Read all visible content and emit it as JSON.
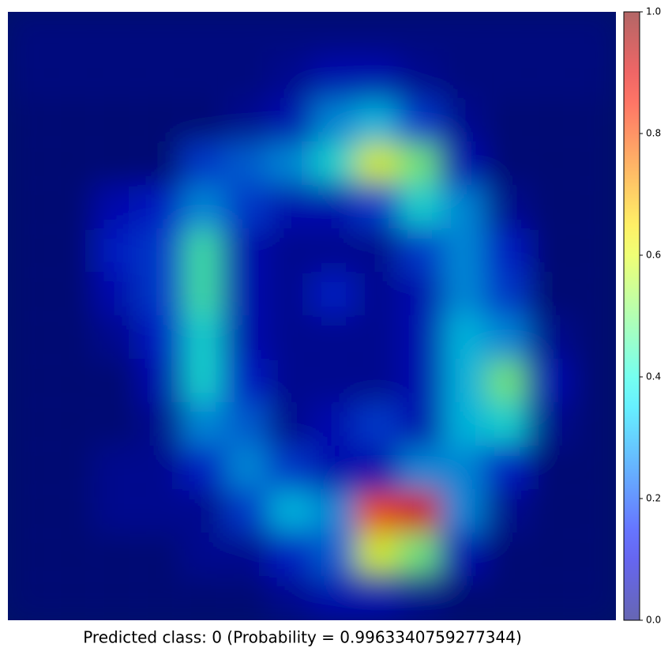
{
  "chart_data": {
    "type": "heatmap",
    "colormap": "jet",
    "alpha": 0.6,
    "xlabel": "Predicted class: 0 (Probability = 0.9963340759277344)",
    "z": [
      [
        0.02,
        0.02,
        0.02,
        0.02,
        0.02,
        0.02,
        0.02,
        0.02,
        0.02,
        0.02,
        0.02,
        0.02,
        0.02,
        0.02
      ],
      [
        0.02,
        0.02,
        0.02,
        0.02,
        0.02,
        0.02,
        0.05,
        0.1,
        0.1,
        0.05,
        0.02,
        0.02,
        0.02,
        0.02
      ],
      [
        0,
        0,
        0,
        0,
        0,
        0.05,
        0.1,
        0.3,
        0.35,
        0.2,
        0.05,
        0,
        0,
        0
      ],
      [
        0,
        0,
        0,
        0,
        0.2,
        0.25,
        0.3,
        0.4,
        0.6,
        0.5,
        0.1,
        0,
        0,
        0
      ],
      [
        0,
        0,
        0.1,
        0.15,
        0.3,
        0.2,
        0.1,
        0.1,
        0.2,
        0.4,
        0.3,
        0.05,
        0,
        0
      ],
      [
        0,
        0,
        0.15,
        0.2,
        0.45,
        0.1,
        0.05,
        0.05,
        0.05,
        0.2,
        0.3,
        0.15,
        0,
        0
      ],
      [
        0,
        0,
        0.1,
        0.2,
        0.45,
        0.1,
        0.05,
        0.15,
        0.05,
        0.1,
        0.3,
        0.2,
        0,
        0
      ],
      [
        0,
        0,
        0.05,
        0.15,
        0.4,
        0.1,
        0.05,
        0.05,
        0.05,
        0.1,
        0.35,
        0.3,
        0.05,
        0
      ],
      [
        0,
        0,
        0,
        0.1,
        0.4,
        0.15,
        0.05,
        0.05,
        0.05,
        0.1,
        0.35,
        0.5,
        0.1,
        0
      ],
      [
        0,
        0,
        0,
        0.05,
        0.3,
        0.25,
        0.05,
        0.1,
        0.2,
        0.1,
        0.35,
        0.4,
        0.05,
        0
      ],
      [
        0,
        0,
        0.05,
        0.05,
        0.15,
        0.3,
        0.2,
        0.1,
        0.1,
        0.3,
        0.3,
        0.15,
        0,
        0
      ],
      [
        0,
        0,
        0.05,
        0.05,
        0.05,
        0.2,
        0.35,
        0.3,
        0.8,
        0.9,
        0.3,
        0.05,
        0,
        0
      ],
      [
        0,
        0,
        0,
        0,
        0.05,
        0.05,
        0.15,
        0.25,
        0.6,
        0.5,
        0.1,
        0,
        0,
        0
      ],
      [
        0,
        0,
        0,
        0,
        0,
        0,
        0.05,
        0.1,
        0.1,
        0.05,
        0,
        0,
        0,
        0
      ]
    ],
    "zlim": [
      0,
      1
    ],
    "cbar_ticks": [
      {
        "value": 0,
        "label": "0.0"
      },
      0.2,
      0.4,
      0.6,
      0.8,
      {
        "value": 1,
        "label": "1.0"
      }
    ]
  }
}
